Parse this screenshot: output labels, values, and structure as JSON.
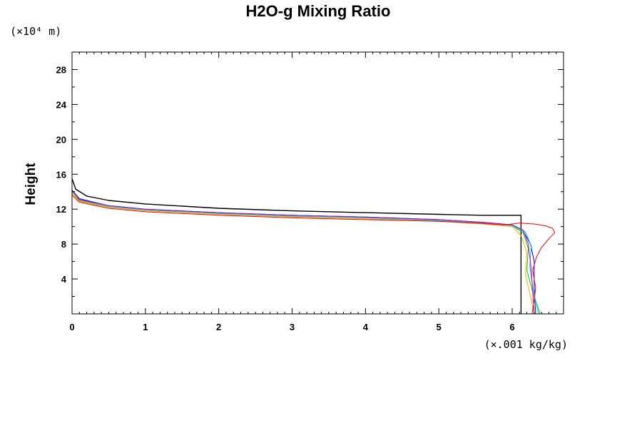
{
  "chart_data": {
    "type": "line",
    "title": "H2O-g Mixing Ratio",
    "ylabel": "Height",
    "y_unit_label": "(×10⁴ m)",
    "x_unit_label": "(×.001 kg/kg)",
    "xlim": [
      0,
      6.7
    ],
    "ylim": [
      0,
      30
    ],
    "x_ticks": [
      0,
      1,
      2,
      3,
      4,
      5,
      6
    ],
    "y_ticks": [
      4,
      8,
      12,
      16,
      20,
      24,
      28
    ],
    "series": [
      {
        "color": "#000000",
        "x": [
          0,
          0.05,
          0.2,
          0.5,
          1.0,
          2.0,
          3.0,
          4.0,
          5.0,
          5.6,
          6.12,
          6.12
        ],
        "y": [
          15.5,
          14.3,
          13.5,
          13.0,
          12.6,
          12.1,
          11.8,
          11.6,
          11.4,
          11.3,
          11.3,
          0
        ]
      },
      {
        "color": "#0000ff",
        "x": [
          0,
          0.1,
          0.5,
          1.0,
          2.0,
          3.0,
          4.0,
          5.0,
          5.6,
          6.0,
          6.15,
          6.25,
          6.3,
          6.3,
          6.32
        ],
        "y": [
          14.2,
          13.2,
          12.4,
          12.0,
          11.6,
          11.3,
          11.1,
          10.8,
          10.5,
          10.2,
          9.5,
          8.0,
          6.0,
          3.0,
          0
        ]
      },
      {
        "color": "#00cc00",
        "x": [
          0,
          0.1,
          0.5,
          1.0,
          2.0,
          3.0,
          4.0,
          5.0,
          5.6,
          6.0,
          6.15,
          6.22,
          6.2,
          6.28,
          6.38
        ],
        "y": [
          14.0,
          13.0,
          12.3,
          11.9,
          11.5,
          11.2,
          11.0,
          10.7,
          10.4,
          10.1,
          9.3,
          7.5,
          5.0,
          2.5,
          0
        ]
      },
      {
        "color": "#ffaa00",
        "x": [
          0,
          0.1,
          0.5,
          1.0,
          2.0,
          3.0,
          4.0,
          5.0,
          5.6,
          6.0,
          6.12,
          6.2,
          6.18,
          6.25,
          6.3
        ],
        "y": [
          13.8,
          12.9,
          12.2,
          11.8,
          11.4,
          11.1,
          10.9,
          10.6,
          10.3,
          10.0,
          9.0,
          7.0,
          4.5,
          2.0,
          0
        ]
      },
      {
        "color": "#00cccc",
        "x": [
          0,
          0.1,
          0.5,
          1.0,
          2.0,
          3.0,
          4.0,
          5.0,
          5.6,
          6.0,
          6.18,
          6.26,
          6.24,
          6.28,
          6.36
        ],
        "y": [
          14.1,
          13.1,
          12.3,
          11.9,
          11.5,
          11.2,
          11.0,
          10.7,
          10.4,
          10.1,
          9.4,
          7.8,
          5.5,
          3.0,
          0
        ]
      },
      {
        "color": "#cc00cc",
        "x": [
          0,
          0,
          0.1,
          0.5,
          1.0,
          2.0,
          3.0,
          4.0,
          5.0,
          5.6,
          6.0,
          6.15,
          6.22,
          6.26,
          6.3
        ],
        "y": [
          30,
          14.2,
          13.1,
          12.4,
          12.0,
          11.6,
          11.3,
          11.1,
          10.8,
          10.5,
          10.2,
          9.6,
          8.0,
          5.0,
          0
        ]
      },
      {
        "color": "#ff0000",
        "x": [
          0,
          0.1,
          0.5,
          1.0,
          2.0,
          3.0,
          4.0,
          5.0,
          5.5,
          5.9,
          6.1,
          6.3,
          6.45,
          6.55,
          6.58,
          6.5,
          6.4,
          6.33,
          6.28,
          6.32,
          6.3,
          6.27
        ],
        "y": [
          13.6,
          12.8,
          12.1,
          11.7,
          11.3,
          11.0,
          10.8,
          10.6,
          10.4,
          10.2,
          10.4,
          10.3,
          10.1,
          9.8,
          9.3,
          8.6,
          7.6,
          6.5,
          5.0,
          3.0,
          1.5,
          0
        ]
      }
    ],
    "grid": false,
    "legend": "none"
  }
}
